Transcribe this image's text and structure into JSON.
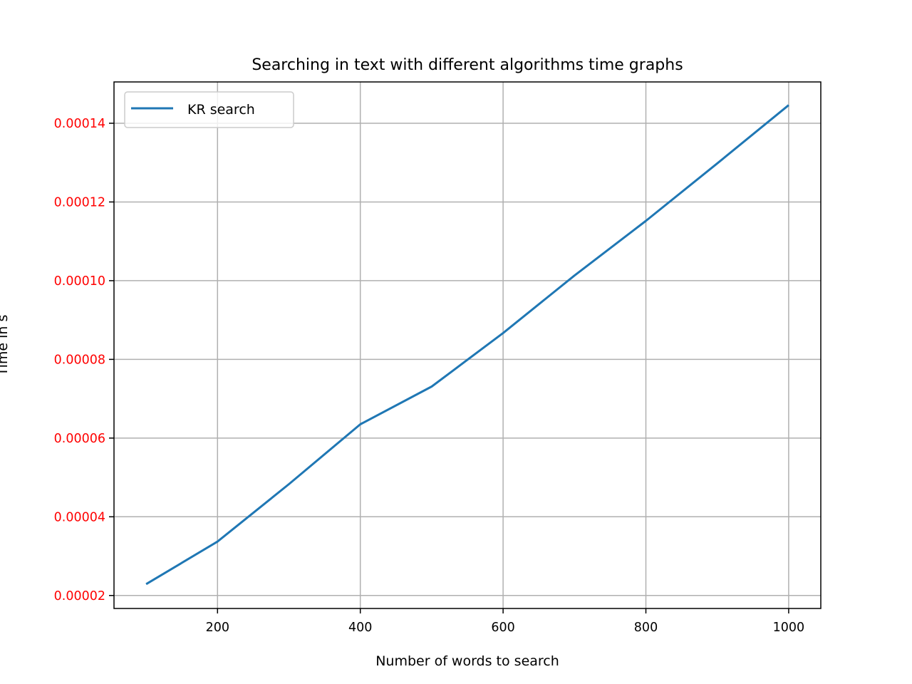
{
  "chart_data": {
    "type": "line",
    "title": "Searching in text with different algorithms time graphs",
    "xlabel": "Number of words to search",
    "ylabel": "Time in s",
    "xlim": [
      55,
      1045
    ],
    "ylim": [
      1.67e-05,
      0.0001505
    ],
    "x_ticks": [
      200,
      400,
      600,
      800,
      1000
    ],
    "x_tick_labels": [
      "200",
      "400",
      "600",
      "800",
      "1000"
    ],
    "y_ticks": [
      2e-05,
      4e-05,
      6e-05,
      8e-05,
      0.0001,
      0.00012,
      0.00014
    ],
    "y_tick_labels": [
      "0.00002",
      "0.00004",
      "0.00006",
      "0.00008",
      "0.00010",
      "0.00012",
      "0.00014"
    ],
    "y_tick_color": "#ff0000",
    "grid": true,
    "legend_position": "top-left",
    "series": [
      {
        "name": "KR search",
        "color": "#1f77b4",
        "x": [
          100,
          200,
          300,
          400,
          500,
          600,
          700,
          800,
          900,
          1000
        ],
        "y": [
          2.29e-05,
          3.37e-05,
          4.83e-05,
          6.35e-05,
          7.31e-05,
          8.67e-05,
          0.0001013,
          0.0001152,
          0.0001298,
          0.0001446
        ]
      }
    ]
  }
}
